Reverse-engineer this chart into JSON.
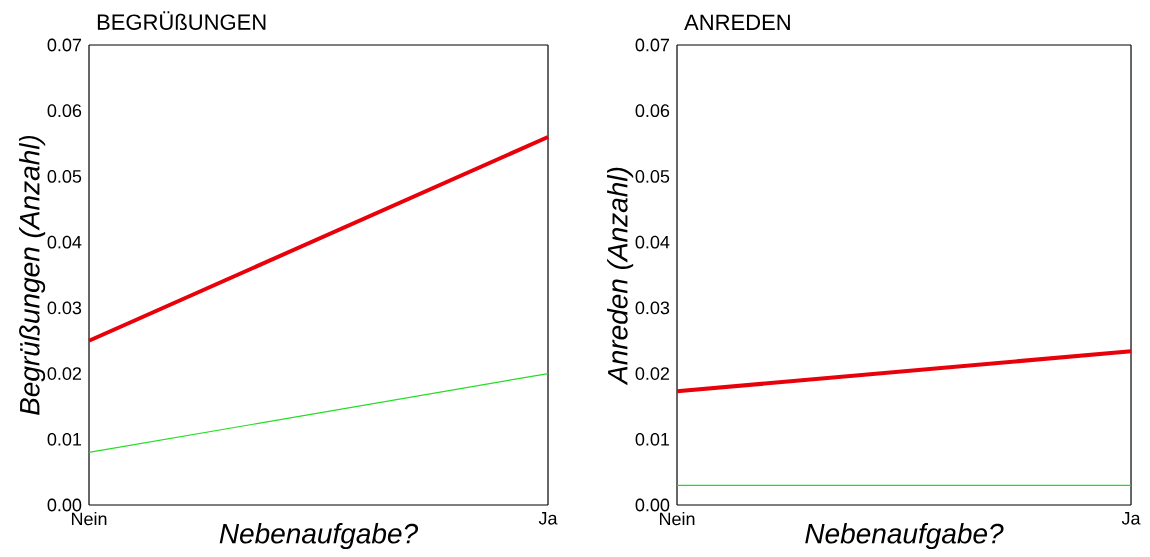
{
  "chart_data": [
    {
      "type": "line",
      "title": "BEGRÜßUNGEN",
      "xlabel": "Nebenaufgabe?",
      "ylabel": "Begrüßungen (Anzahl)",
      "categories": [
        "Nein",
        "Ja"
      ],
      "ylim": [
        0,
        0.07
      ],
      "yticks": [
        {
          "value": 0,
          "label": "0.00"
        },
        {
          "value": 0.01,
          "label": "0.01"
        },
        {
          "value": 0.02,
          "label": "0.02"
        },
        {
          "value": 0.03,
          "label": "0.03"
        },
        {
          "value": 0.04,
          "label": "0.04"
        },
        {
          "value": 0.05,
          "label": "0.05"
        },
        {
          "value": 0.06,
          "label": "0.06"
        },
        {
          "value": 0.07,
          "label": "0.07"
        }
      ],
      "series": [
        {
          "color": "#e8000b",
          "values": [
            0.025,
            0.056
          ]
        },
        {
          "color": "#22dd22",
          "values": [
            0.008,
            0.02
          ]
        }
      ],
      "marker": "none"
    },
    {
      "type": "line",
      "title": "ANREDEN",
      "xlabel": "Nebenaufgabe?",
      "ylabel": "Anreden (Anzahl)",
      "categories": [
        "Nein",
        "Ja"
      ],
      "ylim": [
        0,
        0.07
      ],
      "yticks": [
        {
          "value": 0,
          "label": "0.00"
        },
        {
          "value": 0.01,
          "label": "0.01"
        },
        {
          "value": 0.02,
          "label": "0.02"
        },
        {
          "value": 0.03,
          "label": "0.03"
        },
        {
          "value": 0.04,
          "label": "0.04"
        },
        {
          "value": 0.05,
          "label": "0.05"
        },
        {
          "value": 0.06,
          "label": "0.06"
        },
        {
          "value": 0.07,
          "label": "0.07"
        }
      ],
      "series": [
        {
          "color": "#e8000b",
          "values": [
            0.0173,
            0.0234
          ]
        },
        {
          "color": "#22dd22",
          "values": [
            0.003,
            0.003
          ]
        }
      ],
      "marker": "none"
    }
  ]
}
